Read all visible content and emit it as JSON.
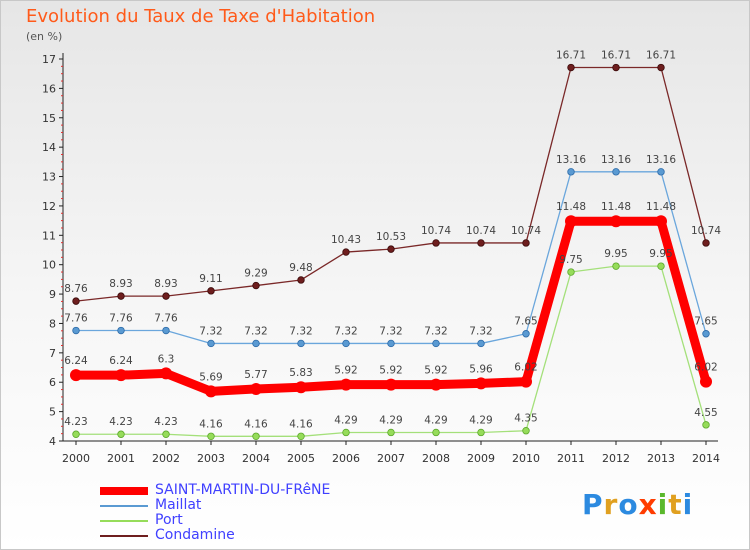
{
  "title": "Evolution du Taux de Taxe d'Habitation",
  "subtitle": "(en %)",
  "logo_text": "Proxiti",
  "colors": {
    "title": "#ff5a1a",
    "legend_text": "#4040ff",
    "saint_martin": "#ff0000",
    "maillat": "#5a9ad2",
    "port": "#96dc5a",
    "condamine": "#6e1e1e"
  },
  "chart_data": {
    "type": "line",
    "title": "Evolution du Taux de Taxe d'Habitation",
    "ylabel": "(en %)",
    "xlabel": "",
    "x": [
      "2000",
      "2001",
      "2002",
      "2003",
      "2004",
      "2005",
      "2006",
      "2007",
      "2008",
      "2009",
      "2010",
      "2011",
      "2012",
      "2013",
      "2014"
    ],
    "ylim": [
      4,
      17
    ],
    "yticks": [
      4,
      5,
      6,
      7,
      8,
      9,
      10,
      11,
      12,
      13,
      14,
      15,
      16,
      17
    ],
    "grid": false,
    "legend_position": "bottom-left",
    "series": [
      {
        "name": "SAINT-MARTIN-DU-FRêNE",
        "color": "#ff0000",
        "values": [
          6.24,
          6.24,
          6.3,
          5.69,
          5.77,
          5.83,
          5.92,
          5.92,
          5.92,
          5.96,
          6.02,
          11.48,
          11.48,
          11.48,
          6.02
        ]
      },
      {
        "name": "Maillat",
        "color": "#5a9ad2",
        "values": [
          7.76,
          7.76,
          7.76,
          7.32,
          7.32,
          7.32,
          7.32,
          7.32,
          7.32,
          7.32,
          7.65,
          13.16,
          13.16,
          13.16,
          7.65
        ]
      },
      {
        "name": "Port",
        "color": "#96dc5a",
        "values": [
          4.23,
          4.23,
          4.23,
          4.16,
          4.16,
          4.16,
          4.29,
          4.29,
          4.29,
          4.29,
          4.35,
          9.75,
          9.95,
          9.95,
          4.55
        ]
      },
      {
        "name": "Condamine",
        "color": "#6e1e1e",
        "values": [
          8.76,
          8.93,
          8.93,
          9.11,
          9.29,
          9.48,
          10.43,
          10.53,
          10.74,
          10.74,
          10.74,
          16.71,
          16.71,
          16.71,
          10.74
        ]
      }
    ],
    "data_labels": [
      [
        "6.24",
        "6.24",
        "6.3",
        "5.69",
        "5.77",
        "5.83",
        "5.92",
        "5.92",
        "5.92",
        "5.96",
        "6.02",
        "11.48",
        "11.48",
        "11.48",
        "6.02"
      ],
      [
        "7.76",
        "7.76",
        "7.76",
        "7.32",
        "7.32",
        "7.32",
        "7.32",
        "7.32",
        "7.32",
        "7.32",
        "7.65",
        "13.16",
        "13.16",
        "13.16",
        "7.65"
      ],
      [
        "4.23",
        "4.23",
        "4.23",
        "4.16",
        "4.16",
        "4.16",
        "4.29",
        "4.29",
        "4.29",
        "4.29",
        "4.35",
        "9.75",
        "9.95",
        "9.95",
        "4.55"
      ],
      [
        "8.76",
        "8.93",
        "8.93",
        "9.11",
        "9.29",
        "9.48",
        "10.43",
        "10.53",
        "10.74",
        "10.74",
        "10.74",
        "16.71",
        "16.71",
        "16.71",
        "10.74"
      ]
    ]
  }
}
